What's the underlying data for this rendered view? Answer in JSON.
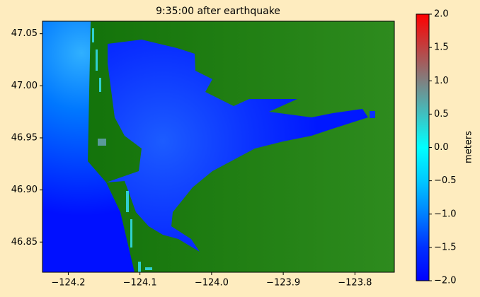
{
  "chart_data": {
    "type": "map",
    "title": "9:35:00 after earthquake",
    "xlim": [
      -124.236,
      -123.745
    ],
    "xticks": [
      {
        "value": -124.2,
        "label": "−124.2"
      },
      {
        "value": -124.1,
        "label": "−124.1"
      },
      {
        "value": -124.0,
        "label": "−124.0"
      },
      {
        "value": -123.9,
        "label": "−123.9"
      },
      {
        "value": -123.8,
        "label": "−123.8"
      }
    ],
    "ylim": [
      46.821,
      47.062
    ],
    "yticks": [
      47.05,
      {
        "value": 47.0,
        "label": "47.00"
      },
      46.95,
      {
        "value": 46.9,
        "label": "46.90"
      },
      46.85
    ],
    "colorbar": {
      "label": "meters",
      "clim": [
        -2.0,
        2.0
      ],
      "ticks": [
        {
          "value": 2.0,
          "label": "2.0"
        },
        {
          "value": 1.5,
          "label": "1.5"
        },
        {
          "value": 1.0,
          "label": "1.0"
        },
        {
          "value": 0.5,
          "label": "0.5"
        },
        {
          "value": 0.0,
          "label": "0.0"
        },
        {
          "value": -0.5,
          "label": "−0.5"
        },
        {
          "value": -1.0,
          "label": "−1.0"
        },
        {
          "value": -1.5,
          "label": "−1.5"
        },
        {
          "value": -2.0,
          "label": "−2.0"
        }
      ],
      "colors": [
        "#0000ff",
        "#0030ff",
        "#0080ff",
        "#00c8ff",
        "#00ffff",
        "#40c0c0",
        "#808080",
        "#c04040",
        "#ff0000"
      ]
    }
  }
}
